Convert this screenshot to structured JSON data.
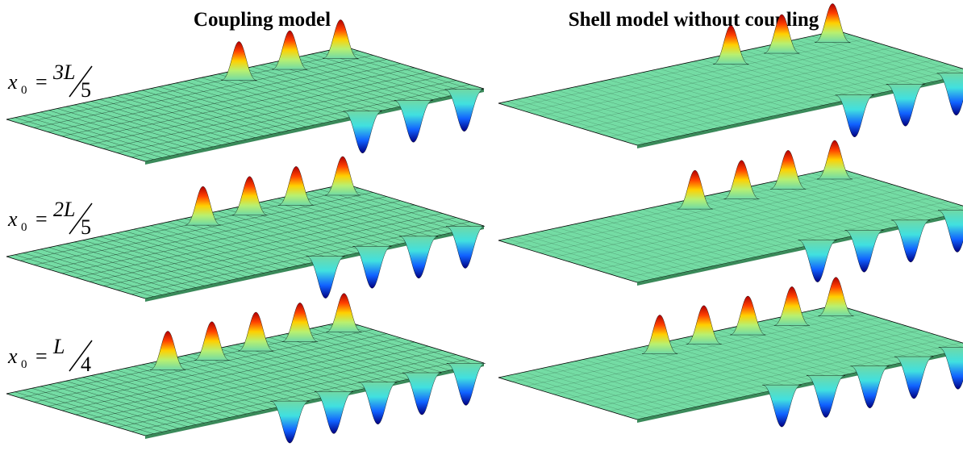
{
  "columns": [
    {
      "title": "Coupling model"
    },
    {
      "title": "Shell model without coupling"
    }
  ],
  "rows": [
    {
      "label": {
        "var": "x",
        "sub": "0",
        "eq": "=",
        "num": "3L",
        "den": "5"
      }
    },
    {
      "label": {
        "var": "x",
        "sub": "0",
        "eq": "=",
        "num": "2L",
        "den": "5"
      }
    },
    {
      "label": {
        "var": "x",
        "sub": "0",
        "eq": "=",
        "num": "L",
        "den": "4"
      }
    }
  ]
}
